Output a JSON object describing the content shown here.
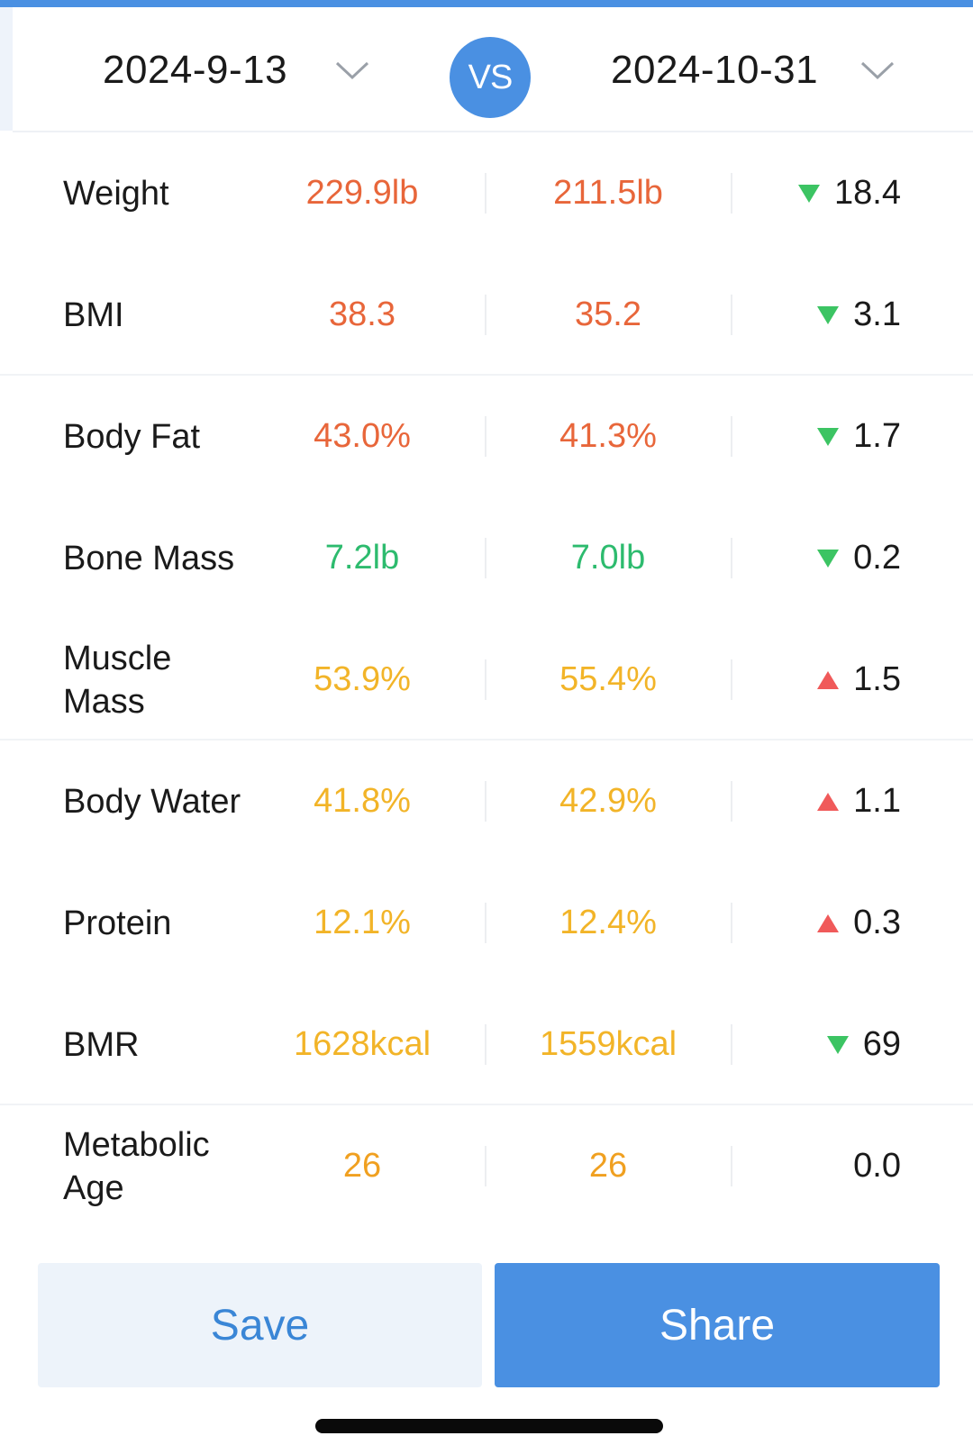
{
  "header": {
    "left_date": "2024-9-13",
    "vs_label": "VS",
    "right_date": "2024-10-31"
  },
  "colors": {
    "accent": "#4a90e2",
    "high": "#e8663a",
    "normal": "#2dbb6e",
    "warn": "#f2b428",
    "down_arrow": "#3cc463",
    "up_arrow": "#f05a5a"
  },
  "metrics": [
    {
      "label": "Weight",
      "a": "229.9lb",
      "b": "211.5lb",
      "change": "18.4",
      "direction": "down",
      "status": "high"
    },
    {
      "label": "BMI",
      "a": "38.3",
      "b": "35.2",
      "change": "3.1",
      "direction": "down",
      "status": "high"
    },
    {
      "label": "Body Fat",
      "a": "43.0%",
      "b": "41.3%",
      "change": "1.7",
      "direction": "down",
      "status": "high"
    },
    {
      "label": "Bone Mass",
      "a": "7.2lb",
      "b": "7.0lb",
      "change": "0.2",
      "direction": "down",
      "status": "normal"
    },
    {
      "label": "Muscle Mass",
      "a": "53.9%",
      "b": "55.4%",
      "change": "1.5",
      "direction": "up",
      "status": "warn"
    },
    {
      "label": "Body Water",
      "a": "41.8%",
      "b": "42.9%",
      "change": "1.1",
      "direction": "up",
      "status": "warn"
    },
    {
      "label": "Protein",
      "a": "12.1%",
      "b": "12.4%",
      "change": "0.3",
      "direction": "up",
      "status": "warn"
    },
    {
      "label": "BMR",
      "a": "1628kcal",
      "b": "1559kcal",
      "change": "69",
      "direction": "down",
      "status": "warn"
    },
    {
      "label": "Metabolic Age",
      "a": "26",
      "b": "26",
      "change": "0.0",
      "direction": "none",
      "status": "orange"
    }
  ],
  "buttons": {
    "save": "Save",
    "share": "Share"
  }
}
